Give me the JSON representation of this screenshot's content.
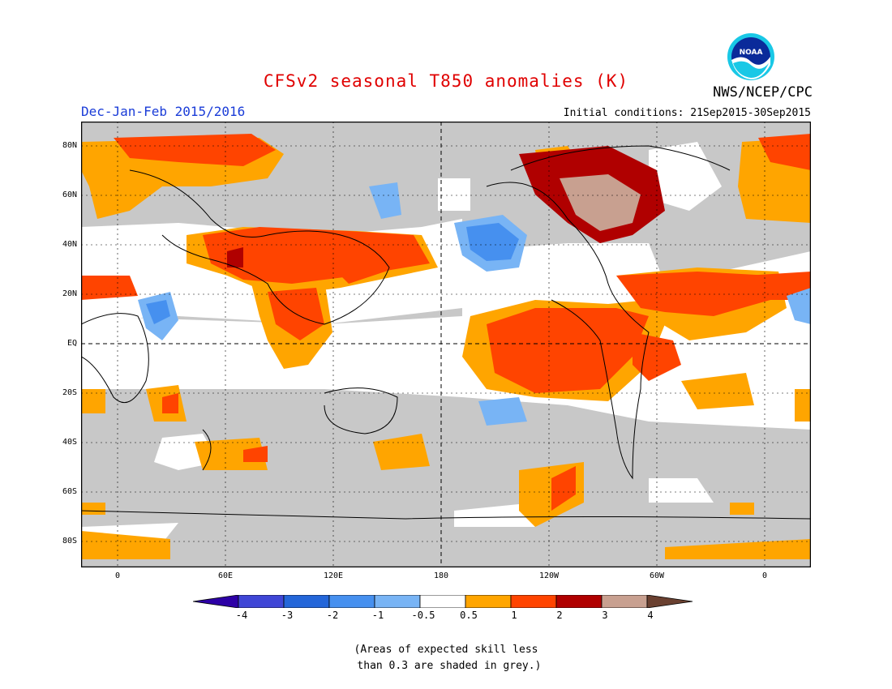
{
  "title": "CFSv2 seasonal T850 anomalies (K)",
  "season": "Dec-Jan-Feb 2015/2016",
  "initial_conditions": "Initial conditions: 21Sep2015-30Sep2015",
  "organization": "NWS/NCEP/CPC",
  "logo_text": "NOAA",
  "lat_labels": [
    "80N",
    "60N",
    "40N",
    "20N",
    "EQ",
    "20S",
    "40S",
    "60S",
    "80S"
  ],
  "lon_labels": [
    "0",
    "60E",
    "120E",
    "180",
    "120W",
    "60W",
    "0"
  ],
  "colorbar": {
    "ticks": [
      "-4",
      "-3",
      "-2",
      "-1",
      "-0.5",
      "0.5",
      "1",
      "2",
      "3",
      "4"
    ],
    "colors": [
      "#2d00a6",
      "#3f46d6",
      "#2466d9",
      "#4690ef",
      "#78b4f5",
      "#ffffff",
      "#ffa500",
      "#ff4400",
      "#b00000",
      "#c8a090",
      "#6a4030"
    ]
  },
  "footnote": [
    "(Areas of expected skill less",
    " than 0.3 are shaded in grey.)"
  ],
  "colors": {
    "title": "#e00000",
    "season": "#1a3cd8",
    "skill_grey": "#c8c8c8"
  }
}
